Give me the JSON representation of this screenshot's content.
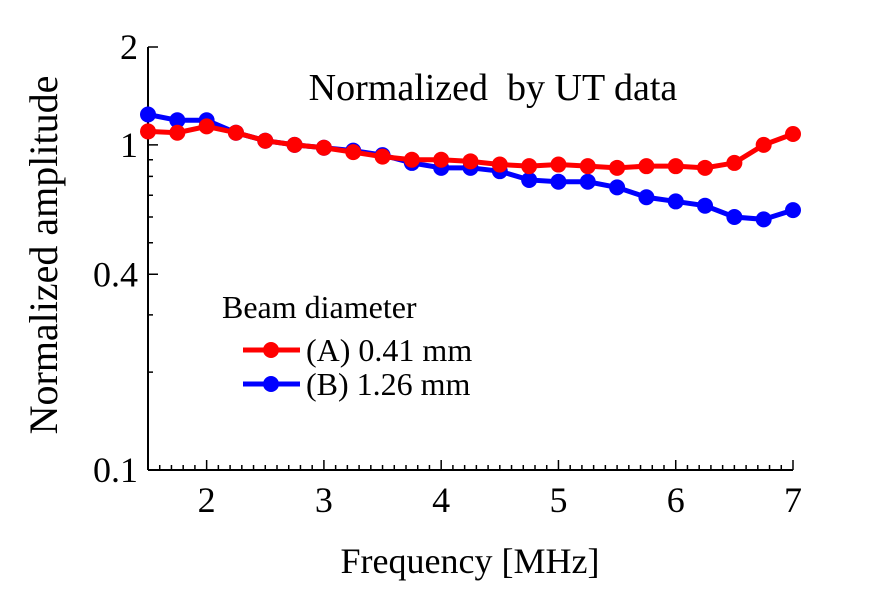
{
  "chart_data": {
    "type": "line",
    "title": "Normalized  by UT data",
    "xlabel": "Frequency [MHz]",
    "ylabel": "Normalized amplitude",
    "xlim": [
      1.5,
      7
    ],
    "ylim": [
      0.1,
      2
    ],
    "yscale": "log",
    "xticks": [
      2,
      3,
      4,
      5,
      6,
      7
    ],
    "xtick_labels": [
      "2",
      "3",
      "4",
      "5",
      "6",
      "7"
    ],
    "yticks": [
      0.1,
      0.4,
      1,
      2
    ],
    "ytick_labels": [
      "0.1",
      "0.4",
      "1",
      "2"
    ],
    "legend_title": "Beam diameter",
    "legend_position": "lower-left",
    "grid": false,
    "series": [
      {
        "name": "(A) 0.41 mm",
        "color": "#ff0000",
        "x": [
          1.5,
          1.75,
          2,
          2.25,
          2.5,
          2.75,
          3,
          3.25,
          3.5,
          3.75,
          4,
          4.25,
          4.5,
          4.75,
          5,
          5.25,
          5.5,
          5.75,
          6,
          6.25,
          6.5,
          6.75,
          7
        ],
        "y": [
          1.1,
          1.09,
          1.14,
          1.09,
          1.03,
          1.0,
          0.98,
          0.95,
          0.92,
          0.9,
          0.9,
          0.89,
          0.87,
          0.86,
          0.87,
          0.86,
          0.85,
          0.86,
          0.86,
          0.85,
          0.88,
          1.0,
          1.08
        ]
      },
      {
        "name": "(B) 1.26 mm",
        "color": "#0000ff",
        "x": [
          1.5,
          1.75,
          2,
          2.25,
          2.5,
          2.75,
          3,
          3.25,
          3.5,
          3.75,
          4,
          4.25,
          4.5,
          4.75,
          5,
          5.25,
          5.5,
          5.75,
          6,
          6.25,
          6.5,
          6.75,
          7
        ],
        "y": [
          1.24,
          1.19,
          1.19,
          1.09,
          1.03,
          1.0,
          0.98,
          0.96,
          0.93,
          0.88,
          0.85,
          0.85,
          0.83,
          0.78,
          0.77,
          0.77,
          0.74,
          0.69,
          0.67,
          0.65,
          0.6,
          0.59,
          0.63
        ]
      }
    ]
  }
}
